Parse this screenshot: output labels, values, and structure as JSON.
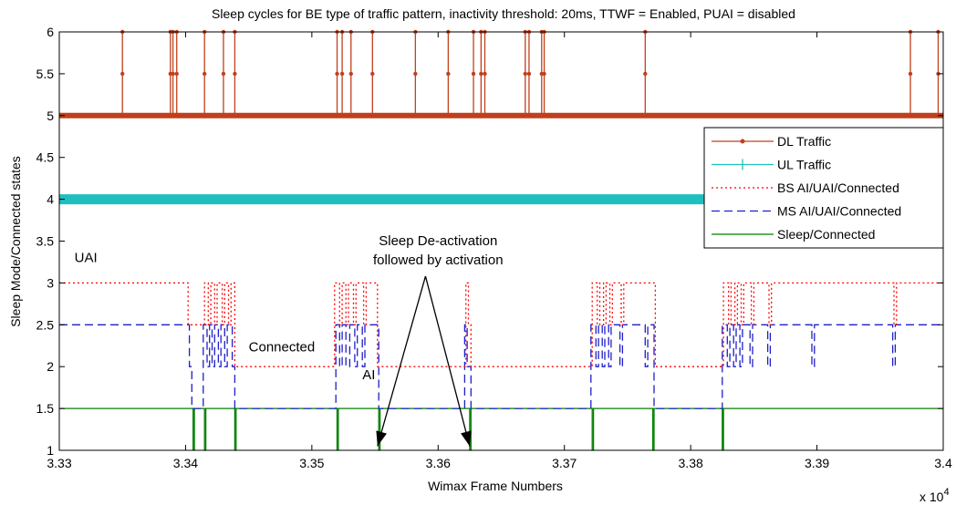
{
  "chart_data": {
    "type": "line",
    "title": "Sleep cycles for BE type of traffic pattern, inactivity threshold: 20ms, TTWF = Enabled, PUAI = disabled",
    "xlabel": "Wimax Frame Numbers",
    "ylabel": "Sleep Mode/Connected states",
    "x_multiplier": "x 10",
    "x_multiplier_exp": "4",
    "xlim": [
      33300,
      34000
    ],
    "ylim": [
      1,
      6
    ],
    "x_ticks": [
      "3.33",
      "3.34",
      "3.35",
      "3.36",
      "3.37",
      "3.38",
      "3.39",
      "3.4"
    ],
    "y_ticks": [
      "1",
      "1.5",
      "2",
      "2.5",
      "3",
      "3.5",
      "4",
      "4.5",
      "5",
      "5.5",
      "6"
    ],
    "grid": false,
    "legend_position": "top-right",
    "series": [
      {
        "name": "DL Traffic",
        "color": "#c0401c",
        "style": "solid-dot",
        "baseline": 5,
        "spike_top": 6,
        "spikes": [
          33350,
          33388,
          33390,
          33393,
          33415,
          33430,
          33439,
          33520,
          33524,
          33531,
          33548,
          33582,
          33608,
          33628,
          33634,
          33637,
          33669,
          33672,
          33682,
          33684,
          33764,
          33974,
          33996
        ]
      },
      {
        "name": "UL Traffic",
        "color": "#1fbfbf",
        "style": "solid-plus",
        "baseline": 4,
        "spikes": []
      },
      {
        "name": "BS AI/UAI/Connected",
        "color": "#ff0000",
        "style": "dotted",
        "points": [
          [
            33300,
            3
          ],
          [
            33402,
            3
          ],
          [
            33402,
            2.5
          ],
          [
            33415,
            2.5
          ],
          [
            33415,
            3
          ],
          [
            33418,
            3
          ],
          [
            33418,
            2.5
          ],
          [
            33420,
            2.5
          ],
          [
            33420,
            3
          ],
          [
            33423,
            3
          ],
          [
            33423,
            2.5
          ],
          [
            33425,
            2.5
          ],
          [
            33425,
            3
          ],
          [
            33429,
            3
          ],
          [
            33429,
            2.5
          ],
          [
            33431,
            2.5
          ],
          [
            33431,
            3
          ],
          [
            33434,
            3
          ],
          [
            33434,
            2.5
          ],
          [
            33436,
            2.5
          ],
          [
            33436,
            3
          ],
          [
            33439,
            3
          ],
          [
            33439,
            2
          ],
          [
            33518,
            2
          ],
          [
            33518,
            3
          ],
          [
            33522,
            3
          ],
          [
            33522,
            2.5
          ],
          [
            33524,
            2.5
          ],
          [
            33524,
            3
          ],
          [
            33527,
            3
          ],
          [
            33527,
            2.5
          ],
          [
            33529,
            2.5
          ],
          [
            33529,
            3
          ],
          [
            33533,
            3
          ],
          [
            33533,
            2.5
          ],
          [
            33535,
            2.5
          ],
          [
            33535,
            3
          ],
          [
            33541,
            3
          ],
          [
            33541,
            2.5
          ],
          [
            33543,
            2.5
          ],
          [
            33543,
            3
          ],
          [
            33552,
            3
          ],
          [
            33552,
            2
          ],
          [
            33622,
            2
          ],
          [
            33622,
            3
          ],
          [
            33624,
            3
          ],
          [
            33624,
            2.5
          ],
          [
            33626,
            2.5
          ],
          [
            33626,
            2
          ],
          [
            33722,
            2
          ],
          [
            33722,
            3
          ],
          [
            33726,
            3
          ],
          [
            33726,
            2.5
          ],
          [
            33728,
            2.5
          ],
          [
            33728,
            3
          ],
          [
            33731,
            3
          ],
          [
            33731,
            2.5
          ],
          [
            33733,
            2.5
          ],
          [
            33733,
            3
          ],
          [
            33736,
            3
          ],
          [
            33736,
            2.5
          ],
          [
            33738,
            2.5
          ],
          [
            33738,
            3
          ],
          [
            33745,
            3
          ],
          [
            33745,
            2.5
          ],
          [
            33747,
            2.5
          ],
          [
            33747,
            3
          ],
          [
            33772,
            3
          ],
          [
            33772,
            2
          ],
          [
            33826,
            2
          ],
          [
            33826,
            3
          ],
          [
            33830,
            3
          ],
          [
            33830,
            2.5
          ],
          [
            33832,
            2.5
          ],
          [
            33832,
            3
          ],
          [
            33835,
            3
          ],
          [
            33835,
            2.5
          ],
          [
            33837,
            2.5
          ],
          [
            33837,
            3
          ],
          [
            33840,
            3
          ],
          [
            33840,
            2.5
          ],
          [
            33842,
            2.5
          ],
          [
            33842,
            3
          ],
          [
            33848,
            3
          ],
          [
            33848,
            2.5
          ],
          [
            33850,
            2.5
          ],
          [
            33850,
            3
          ],
          [
            33862,
            3
          ],
          [
            33862,
            2.5
          ],
          [
            33864,
            2.5
          ],
          [
            33864,
            3
          ],
          [
            33961,
            3
          ],
          [
            33961,
            2.5
          ],
          [
            33963,
            2.5
          ],
          [
            33963,
            3
          ],
          [
            34000,
            3
          ]
        ]
      },
      {
        "name": "MS AI/UAI/Connected",
        "color": "#1e1ec8",
        "style": "dashed",
        "points": [
          [
            33300,
            2.5
          ],
          [
            33403,
            2.5
          ],
          [
            33403,
            2
          ],
          [
            33405,
            2
          ],
          [
            33405,
            1.5
          ],
          [
            33414,
            1.5
          ],
          [
            33414,
            2.5
          ],
          [
            33417,
            2.5
          ],
          [
            33417,
            2
          ],
          [
            33419,
            2
          ],
          [
            33419,
            2.5
          ],
          [
            33421,
            2.5
          ],
          [
            33421,
            2
          ],
          [
            33423,
            2
          ],
          [
            33423,
            2.5
          ],
          [
            33426,
            2.5
          ],
          [
            33426,
            2
          ],
          [
            33428,
            2
          ],
          [
            33428,
            2.5
          ],
          [
            33431,
            2.5
          ],
          [
            33431,
            2
          ],
          [
            33433,
            2
          ],
          [
            33433,
            2.5
          ],
          [
            33437,
            2.5
          ],
          [
            33437,
            2
          ],
          [
            33439,
            2
          ],
          [
            33439,
            1.5
          ],
          [
            33519,
            1.5
          ],
          [
            33519,
            2.5
          ],
          [
            33522,
            2.5
          ],
          [
            33522,
            2
          ],
          [
            33524,
            2
          ],
          [
            33524,
            2.5
          ],
          [
            33527,
            2.5
          ],
          [
            33527,
            2
          ],
          [
            33530,
            2
          ],
          [
            33530,
            2.5
          ],
          [
            33534,
            2.5
          ],
          [
            33534,
            2
          ],
          [
            33536,
            2
          ],
          [
            33536,
            2.5
          ],
          [
            33540,
            2.5
          ],
          [
            33540,
            2
          ],
          [
            33542,
            2
          ],
          [
            33542,
            2.5
          ],
          [
            33553,
            2.5
          ],
          [
            33553,
            1.5
          ],
          [
            33621,
            1.5
          ],
          [
            33621,
            2.5
          ],
          [
            33623,
            2.5
          ],
          [
            33623,
            2
          ],
          [
            33626,
            2
          ],
          [
            33626,
            1.5
          ],
          [
            33721,
            1.5
          ],
          [
            33721,
            2.5
          ],
          [
            33725,
            2.5
          ],
          [
            33725,
            2
          ],
          [
            33727,
            2
          ],
          [
            33727,
            2.5
          ],
          [
            33730,
            2.5
          ],
          [
            33730,
            2
          ],
          [
            33732,
            2
          ],
          [
            33732,
            2.5
          ],
          [
            33735,
            2.5
          ],
          [
            33735,
            2
          ],
          [
            33737,
            2
          ],
          [
            33737,
            2.5
          ],
          [
            33744,
            2.5
          ],
          [
            33744,
            2
          ],
          [
            33746,
            2
          ],
          [
            33746,
            2.5
          ],
          [
            33764,
            2.5
          ],
          [
            33764,
            2
          ],
          [
            33766,
            2
          ],
          [
            33766,
            2.5
          ],
          [
            33771,
            2.5
          ],
          [
            33771,
            1.5
          ],
          [
            33825,
            1.5
          ],
          [
            33825,
            2.5
          ],
          [
            33829,
            2.5
          ],
          [
            33829,
            2
          ],
          [
            33831,
            2
          ],
          [
            33831,
            2.5
          ],
          [
            33834,
            2.5
          ],
          [
            33834,
            2
          ],
          [
            33836,
            2
          ],
          [
            33836,
            2.5
          ],
          [
            33839,
            2.5
          ],
          [
            33839,
            2
          ],
          [
            33841,
            2
          ],
          [
            33841,
            2.5
          ],
          [
            33847,
            2.5
          ],
          [
            33847,
            2
          ],
          [
            33849,
            2
          ],
          [
            33849,
            2.5
          ],
          [
            33861,
            2.5
          ],
          [
            33861,
            2
          ],
          [
            33863,
            2
          ],
          [
            33863,
            2.5
          ],
          [
            33896,
            2.5
          ],
          [
            33896,
            2
          ],
          [
            33898,
            2
          ],
          [
            33898,
            2.5
          ],
          [
            33960,
            2.5
          ],
          [
            33960,
            2
          ],
          [
            33962,
            2
          ],
          [
            33962,
            2.5
          ],
          [
            34000,
            2.5
          ]
        ]
      },
      {
        "name": "Sleep/Connected",
        "color": "#007f00",
        "style": "solid",
        "baseline": 1.5,
        "drops": [
          33406,
          33415,
          33439,
          33520,
          33553,
          33625,
          33722,
          33770,
          33825
        ]
      }
    ],
    "annotations": [
      {
        "text": "UAI",
        "x": 33312,
        "y": 3.25
      },
      {
        "text": "Connected",
        "x": 33450,
        "y": 2.18
      },
      {
        "text": "AI",
        "x": 33540,
        "y": 1.85
      },
      {
        "text": "Sleep De-activation",
        "x": 33600,
        "y": 3.45
      },
      {
        "text": "followed by activation",
        "x": 33600,
        "y": 3.22
      }
    ],
    "arrows": [
      {
        "from": [
          33590,
          3.08
        ],
        "to": [
          33552,
          1.05
        ]
      },
      {
        "from": [
          33590,
          3.08
        ],
        "to": [
          33625,
          1.05
        ]
      }
    ]
  }
}
